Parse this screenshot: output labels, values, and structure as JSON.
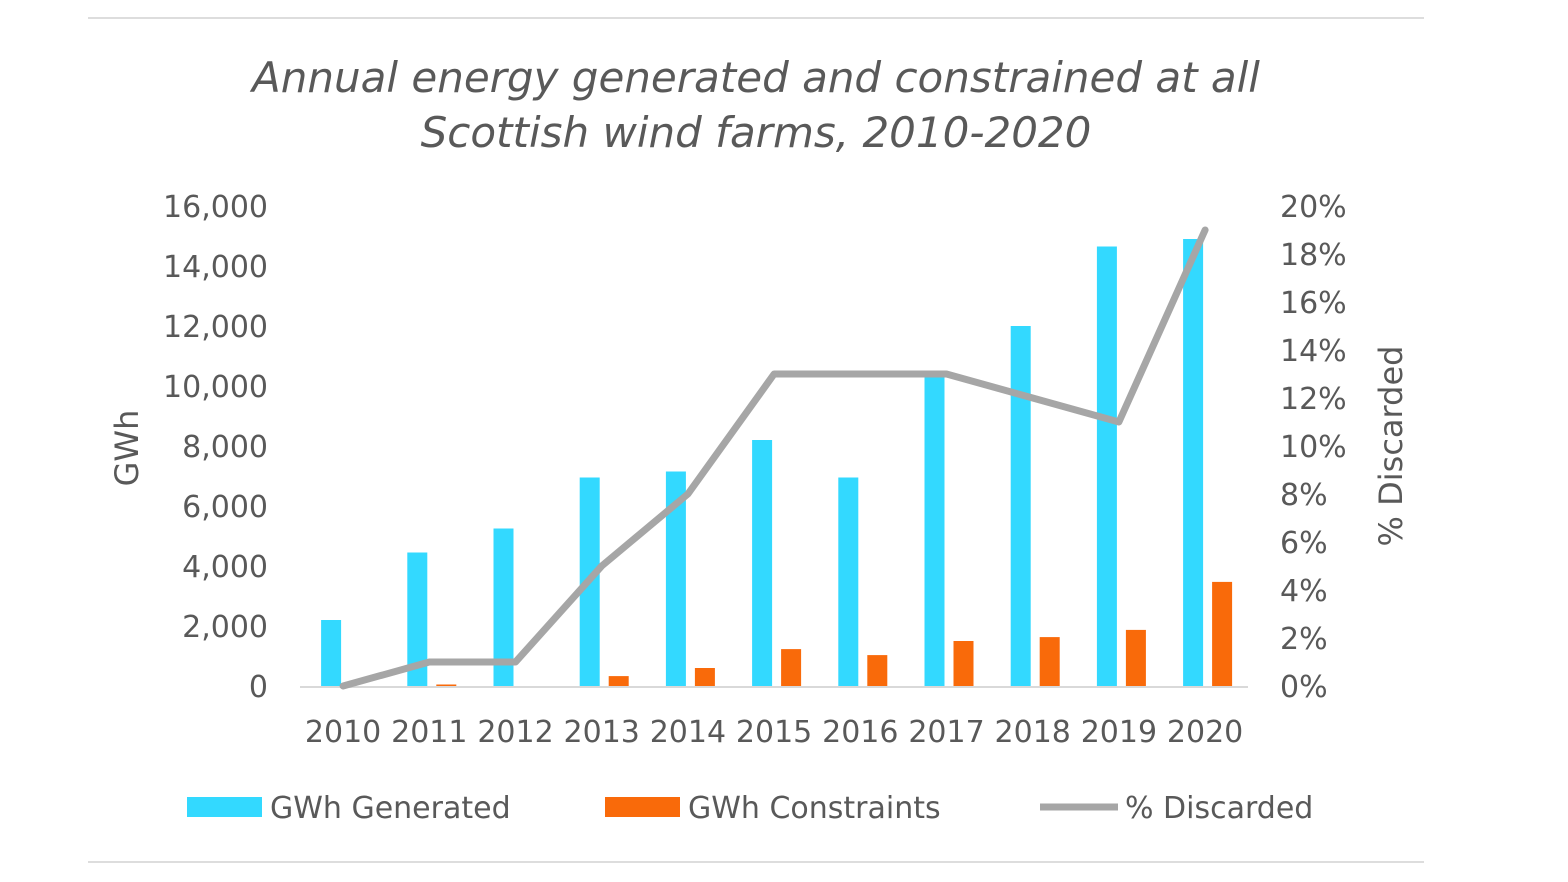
{
  "chart_data": {
    "type": "bar",
    "title": [
      "Annual energy generated and constrained at all",
      "Scottish wind farms, 2010-2020"
    ],
    "categories": [
      "2010",
      "2011",
      "2012",
      "2013",
      "2014",
      "2015",
      "2016",
      "2017",
      "2018",
      "2019",
      "2020"
    ],
    "ylabel": "GWh",
    "y2label": "% Discarded",
    "ylim": [
      0,
      16000
    ],
    "y2lim": [
      0,
      20
    ],
    "yticks": [
      "0",
      "2,000",
      "4,000",
      "6,000",
      "8,000",
      "10,000",
      "12,000",
      "14,000",
      "16,000"
    ],
    "y2ticks": [
      "0%",
      "2%",
      "4%",
      "6%",
      "8%",
      "10%",
      "12%",
      "14%",
      "16%",
      "18%",
      "20%"
    ],
    "grid": false,
    "legend": "bottom",
    "series": [
      {
        "name": "GWh Generated",
        "type": "bar",
        "axis": "left",
        "color": "#33D9FF",
        "values": [
          2200,
          4450,
          5250,
          6950,
          7150,
          8200,
          6950,
          10400,
          12000,
          14650,
          14900
        ]
      },
      {
        "name": "GWh Constraints",
        "type": "bar",
        "axis": "left",
        "color": "#F96A0A",
        "values": [
          0,
          50,
          0,
          330,
          600,
          1230,
          1030,
          1500,
          1630,
          1870,
          3470
        ]
      },
      {
        "name": "% Discarded",
        "type": "line",
        "axis": "right",
        "color": "#A6A6A6",
        "values": [
          0,
          1,
          1,
          5,
          8,
          13,
          13,
          13,
          12,
          11,
          19
        ]
      }
    ]
  }
}
